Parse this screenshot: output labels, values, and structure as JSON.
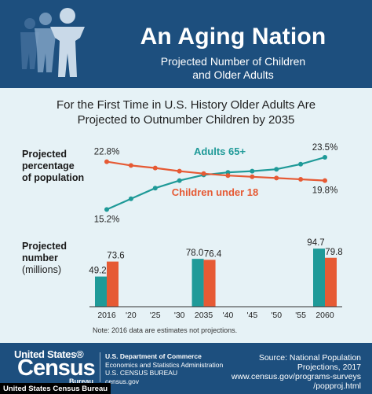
{
  "header": {
    "title": "An Aging Nation",
    "subtitle_line1": "Projected Number of Children",
    "subtitle_line2": "and Older Adults"
  },
  "headline": {
    "line1": "For the First Time in U.S. History Older Adults Are",
    "line2": "Projected to Outnumber Children by 2035"
  },
  "side_labels": {
    "percent_line1": "Projected",
    "percent_line2": "percentage",
    "percent_line3": "of population",
    "number_line1": "Projected",
    "number_line2": "number",
    "number_line3": "(millions)"
  },
  "colors": {
    "adults": "#1f9a98",
    "children": "#e65a34",
    "header": "#1d4f7e",
    "panel": "#e6f2f6"
  },
  "chart_data": [
    {
      "type": "line",
      "x_ticks": [
        "2016",
        "'20",
        "'25",
        "'30",
        "2035",
        "'40",
        "'45",
        "'50",
        "'55",
        "2060"
      ],
      "series": [
        {
          "name": "Adults 65+",
          "values": [
            15.2,
            16.9,
            18.6,
            19.8,
            20.7,
            21.1,
            21.3,
            21.6,
            22.4,
            23.5
          ],
          "color": "#1f9a98",
          "start_label": "15.2%",
          "end_label": "23.5%"
        },
        {
          "name": "Children under 18",
          "values": [
            22.8,
            22.2,
            21.8,
            21.3,
            20.9,
            20.6,
            20.4,
            20.2,
            20.0,
            19.8
          ],
          "color": "#e65a34",
          "start_label": "22.8%",
          "end_label": "19.8%"
        }
      ],
      "ylim": [
        14,
        24.5
      ],
      "grid": false
    },
    {
      "type": "bar",
      "categories": [
        "2016",
        "2035",
        "2060"
      ],
      "x_ticks": [
        "2016",
        "'20",
        "'25",
        "'30",
        "2035",
        "'40",
        "'45",
        "'50",
        "'55",
        "2060"
      ],
      "series": [
        {
          "name": "Adults 65+",
          "values": [
            49.2,
            78.0,
            94.7
          ],
          "labels": [
            "49.2",
            "78.0",
            "94.7"
          ],
          "color": "#1f9a98"
        },
        {
          "name": "Children under 18",
          "values": [
            73.6,
            76.4,
            79.8
          ],
          "labels": [
            "73.6",
            "76.4",
            "79.8"
          ],
          "color": "#e65a34"
        }
      ],
      "ylim": [
        0,
        100
      ],
      "grid": false
    }
  ],
  "note": "Note: 2016 data are estimates not projections.",
  "footer": {
    "logo_top": "United States®",
    "logo_main": "Census",
    "logo_bottom": "Bureau",
    "dept_line1": "U.S. Department of Commerce",
    "dept_line2": "Economics and Statistics Administration",
    "dept_line3": "U.S. CENSUS BUREAU",
    "dept_line4": "census.gov",
    "source_line1": "Source: National Population",
    "source_line2": "Projections, 2017",
    "source_line3": "www.census.gov/programs-surveys",
    "source_line4": "/popproj.html"
  },
  "credit": "United States Census Bureau"
}
